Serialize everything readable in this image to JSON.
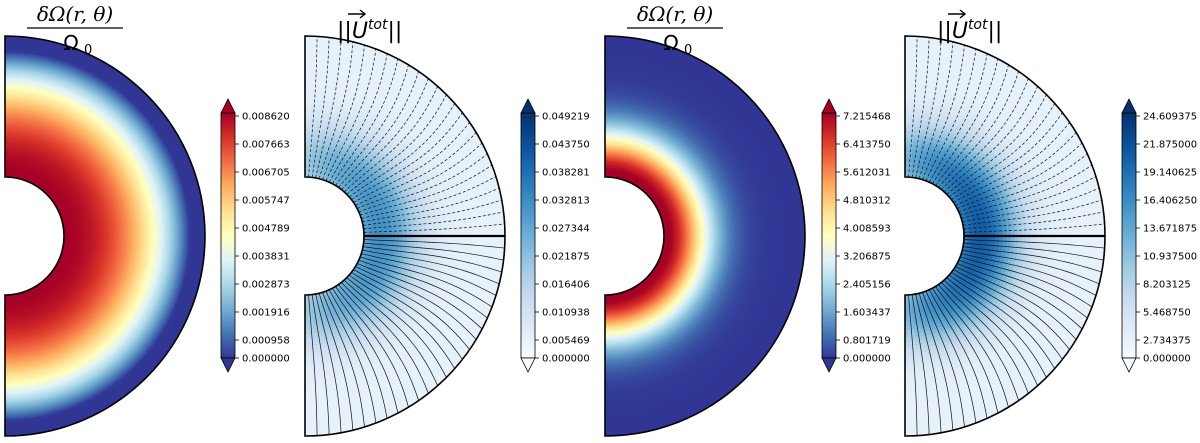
{
  "chart_data": [
    {
      "type": "heatmap",
      "title_parts": {
        "numerator": "δΩ(r, θ)",
        "denominator": "Ω",
        "denominator_sub": "0"
      },
      "colormap": "RdYlBu_r",
      "colorbar": {
        "ticks": [
          "0.008620",
          "0.007663",
          "0.006705",
          "0.005747",
          "0.004789",
          "0.003831",
          "0.002873",
          "0.001916",
          "0.000958",
          "0.000000"
        ],
        "min": 0.0,
        "max": 0.00862
      }
    },
    {
      "type": "heatmap",
      "title_parts": {
        "prefix": "||",
        "vector": "U",
        "superscript": "tot",
        "suffix": "||"
      },
      "colormap": "Blues",
      "streamlines": true,
      "colorbar": {
        "ticks": [
          "0.049219",
          "0.043750",
          "0.038281",
          "0.032813",
          "0.027344",
          "0.021875",
          "0.016406",
          "0.010938",
          "0.005469",
          "0.000000"
        ],
        "min": 0.0,
        "max": 0.049219
      }
    },
    {
      "type": "heatmap",
      "title_parts": {
        "numerator": "δΩ(r, θ)",
        "denominator": "Ω",
        "denominator_sub": "0"
      },
      "colormap": "RdYlBu_r",
      "colorbar": {
        "ticks": [
          "7.215468",
          "6.413750",
          "5.612031",
          "4.810312",
          "4.008593",
          "3.206875",
          "2.405156",
          "1.603437",
          "0.801719",
          "0.000000"
        ],
        "min": 0.0,
        "max": 7.215468
      }
    },
    {
      "type": "heatmap",
      "title_parts": {
        "prefix": "||",
        "vector": "U",
        "superscript": "tot",
        "suffix": "||"
      },
      "colormap": "Blues",
      "streamlines": true,
      "colorbar": {
        "ticks": [
          "24.609375",
          "21.875000",
          "19.140625",
          "16.406250",
          "13.671875",
          "10.937500",
          "8.203125",
          "5.468750",
          "2.734375",
          "0.000000"
        ],
        "min": 0.0,
        "max": 24.609375
      }
    }
  ]
}
